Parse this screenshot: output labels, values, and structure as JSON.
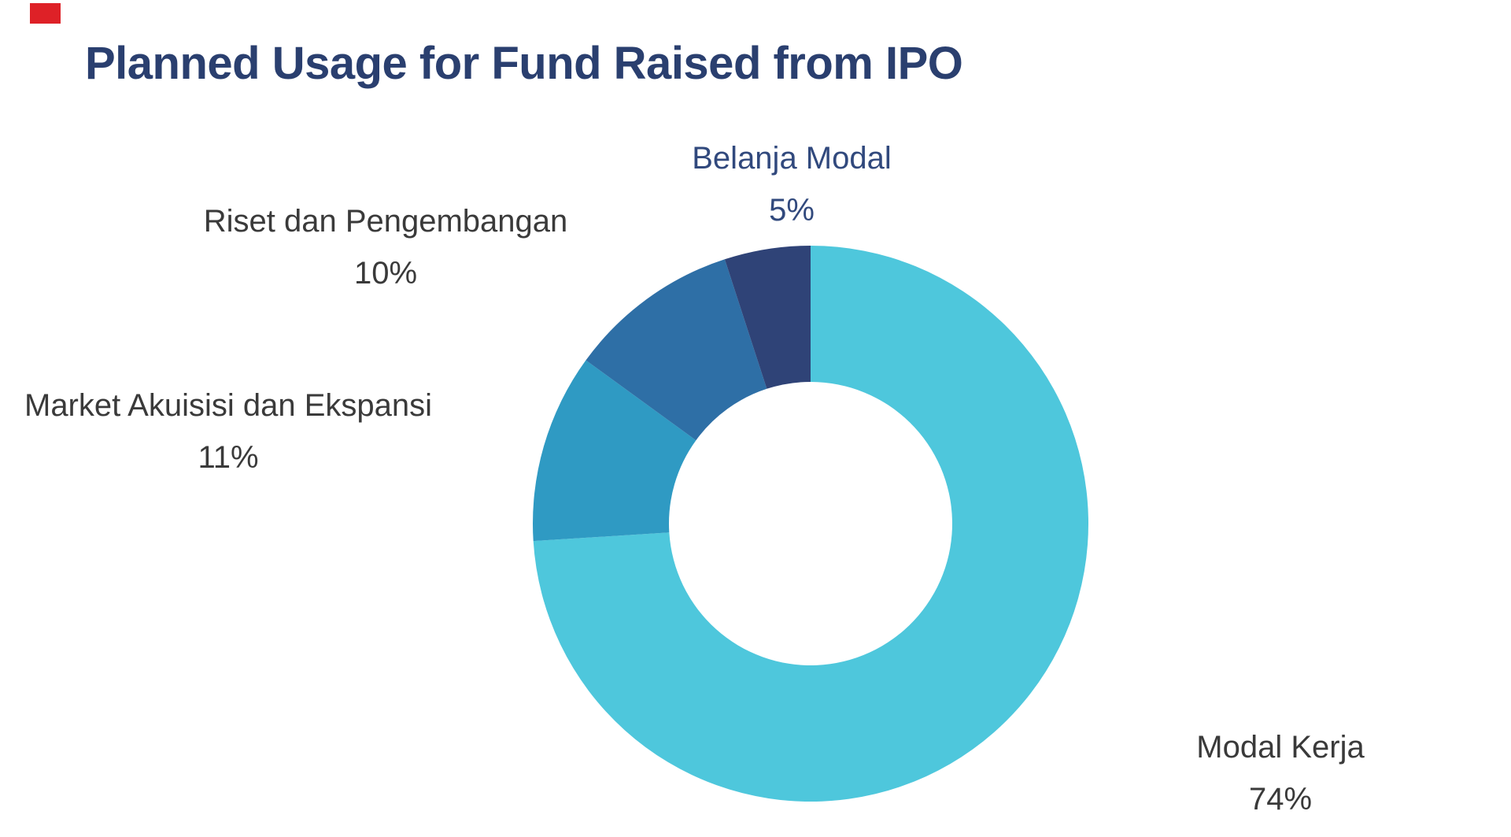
{
  "page": {
    "background_color": "#ffffff"
  },
  "corner_accent": {
    "color": "#de2127"
  },
  "title": {
    "text": "Planned Usage for Fund Raised from IPO",
    "color": "#2a3f6f"
  },
  "chart_data": {
    "type": "pie",
    "subtype": "donut",
    "title": "Planned Usage for Fund Raised from IPO",
    "categories": [
      "Modal Kerja",
      "Market Akuisisi dan Ekspansi",
      "Riset dan Pengembangan",
      "Belanja Modal"
    ],
    "values": [
      74,
      11,
      10,
      5
    ],
    "unit": "%",
    "colors": [
      "#4ec7dc",
      "#2f9ac3",
      "#2e6fa6",
      "#2f4377"
    ],
    "start_angle_deg": 0,
    "direction": "clockwise",
    "inner_radius_ratio": 0.51,
    "legend_position": "none",
    "labels": [
      {
        "name": "Modal Kerja",
        "value_label": "74%",
        "text_color": "#3a3a3a"
      },
      {
        "name": "Market Akuisisi dan Ekspansi",
        "value_label": "11%",
        "text_color": "#3a3a3a"
      },
      {
        "name": "Riset dan Pengembangan",
        "value_label": "10%",
        "text_color": "#3a3a3a"
      },
      {
        "name": "Belanja Modal",
        "value_label": "5%",
        "text_color": "#31497d"
      }
    ]
  }
}
